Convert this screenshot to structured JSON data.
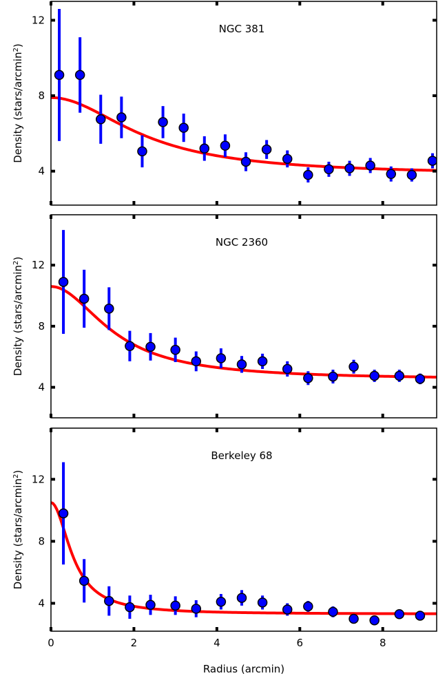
{
  "figure": {
    "xlabel": "Radius (arcmin)",
    "ylabel_prefix": "Density (stars/arcmin",
    "ylabel_sup": "2",
    "ylabel_suffix": ")"
  },
  "colors": {
    "points": "#0000ff",
    "errorbars": "#0000ff",
    "fit": "#ff0000",
    "edge": "#000000"
  },
  "chart_data": [
    {
      "type": "scatter",
      "title": "NGC 381",
      "xlim": [
        0,
        9.3
      ],
      "ylim": [
        2.2,
        13
      ],
      "xticks": [
        0,
        2,
        4,
        6,
        8
      ],
      "yticks": [
        4,
        8,
        12
      ],
      "x": [
        0.2,
        0.7,
        1.2,
        1.7,
        2.2,
        2.7,
        3.2,
        3.7,
        4.2,
        4.7,
        5.2,
        5.7,
        6.2,
        6.7,
        7.2,
        7.7,
        8.2,
        8.7,
        9.2
      ],
      "y": [
        9.1,
        9.1,
        6.75,
        6.85,
        5.05,
        6.6,
        6.3,
        5.2,
        5.35,
        4.5,
        5.15,
        4.65,
        3.8,
        4.1,
        4.15,
        4.3,
        3.85,
        3.8,
        4.55
      ],
      "yerr": [
        3.5,
        2.0,
        1.3,
        1.1,
        0.85,
        0.85,
        0.75,
        0.65,
        0.6,
        0.5,
        0.5,
        0.45,
        0.4,
        0.4,
        0.4,
        0.4,
        0.4,
        0.35,
        0.4
      ],
      "fit": {
        "type": "king",
        "f_bg": 3.8,
        "f0": 4.1,
        "rc": 2.3
      }
    },
    {
      "type": "scatter",
      "title": "NGC 2360",
      "xlim": [
        0,
        9.3
      ],
      "ylim": [
        2.0,
        15.3
      ],
      "xticks": [
        0,
        2,
        4,
        6,
        8
      ],
      "yticks": [
        4,
        8,
        12
      ],
      "x": [
        0.3,
        0.8,
        1.4,
        1.9,
        2.4,
        3.0,
        3.5,
        4.1,
        4.6,
        5.1,
        5.7,
        6.2,
        6.8,
        7.3,
        7.8,
        8.4,
        8.9
      ],
      "y": [
        10.9,
        9.8,
        9.15,
        6.7,
        6.65,
        6.45,
        5.7,
        5.9,
        5.5,
        5.7,
        5.2,
        4.6,
        4.7,
        5.35,
        4.75,
        4.75,
        4.55
      ],
      "yerr": [
        3.4,
        1.9,
        1.4,
        1.0,
        0.9,
        0.8,
        0.65,
        0.65,
        0.55,
        0.5,
        0.5,
        0.45,
        0.45,
        0.45,
        0.4,
        0.4,
        0.35
      ],
      "fit": {
        "type": "king",
        "f_bg": 4.5,
        "f0": 6.1,
        "rc": 1.55
      }
    },
    {
      "type": "scatter",
      "title": "Berkeley 68",
      "xlim": [
        0,
        9.3
      ],
      "ylim": [
        2.2,
        15.3
      ],
      "xticks": [
        0,
        2,
        4,
        6,
        8
      ],
      "yticks": [
        4,
        8,
        12
      ],
      "x": [
        0.3,
        0.8,
        1.4,
        1.9,
        2.4,
        3.0,
        3.5,
        4.1,
        4.6,
        5.1,
        5.7,
        6.2,
        6.8,
        7.3,
        7.8,
        8.4,
        8.9
      ],
      "y": [
        9.8,
        5.45,
        4.15,
        3.75,
        3.9,
        3.85,
        3.65,
        4.1,
        4.35,
        4.05,
        3.6,
        3.8,
        3.45,
        3.0,
        2.9,
        3.3,
        3.2
      ],
      "yerr": [
        3.3,
        1.4,
        0.95,
        0.75,
        0.65,
        0.6,
        0.55,
        0.5,
        0.5,
        0.45,
        0.4,
        0.35,
        0.35,
        0.3,
        0.3,
        0.3,
        0.3
      ],
      "fit": {
        "type": "king",
        "f_bg": 3.3,
        "f0": 7.2,
        "rc": 0.55
      }
    }
  ]
}
